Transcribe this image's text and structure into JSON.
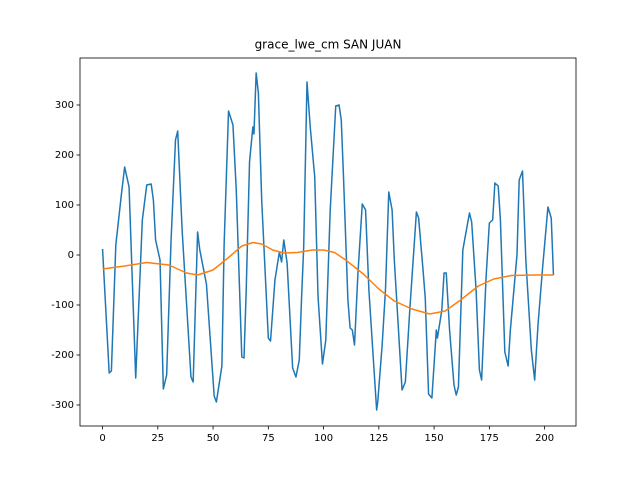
{
  "chart_data": {
    "type": "line",
    "title": "grace_lwe_cm SAN JUAN",
    "xlim": [
      -10.2,
      214.2
    ],
    "ylim": [
      -342,
      394
    ],
    "xticks": [
      0,
      25,
      50,
      75,
      100,
      125,
      150,
      175,
      200
    ],
    "yticks": [
      -300,
      -200,
      -100,
      0,
      100,
      200,
      300
    ],
    "series": [
      {
        "color": "#1f77b4",
        "x": [
          0,
          3,
          4,
          6,
          8.6,
          10,
          12,
          15,
          18,
          20,
          22,
          23,
          24,
          26,
          27.5,
          29,
          31,
          33,
          34,
          36,
          40,
          41,
          43,
          44,
          47,
          50.5,
          51.5,
          54,
          55,
          57,
          59,
          60.5,
          63,
          64,
          65,
          66.5,
          68,
          68.5,
          69.5,
          70.5,
          72,
          75,
          76,
          78,
          80,
          81,
          82,
          83.5,
          86,
          87.5,
          89,
          90,
          91,
          92.5,
          94,
          96,
          97.5,
          99.5,
          101,
          103,
          105.5,
          107,
          108,
          109,
          111,
          112,
          113,
          114,
          115.5,
          117.5,
          119,
          120.5,
          124,
          124.5,
          126.5,
          128,
          129.5,
          131,
          132,
          135.5,
          137,
          139,
          142,
          143,
          145,
          146,
          147.5,
          149,
          151,
          151.5,
          153.5,
          154.5,
          155.5,
          157,
          159,
          160,
          161,
          163,
          166,
          167,
          169,
          170.5,
          171.5,
          173.5,
          175,
          176.5,
          177.5,
          179,
          180,
          182,
          183.5,
          184.5,
          187.5,
          188.5,
          190,
          191.5,
          194,
          195.5,
          197,
          199,
          201.5,
          203,
          204
        ],
        "values": [
          12,
          -236,
          -232,
          20,
          124,
          176,
          136,
          -246,
          70,
          140,
          142,
          110,
          30,
          -10,
          -268,
          -240,
          30,
          230,
          248,
          50,
          -244,
          -254,
          46,
          10,
          -58,
          -282,
          -294,
          -222,
          20,
          288,
          260,
          130,
          -204,
          -206,
          -70,
          186,
          256,
          242,
          364,
          324,
          110,
          -166,
          -172,
          -50,
          6,
          -14,
          30,
          -16,
          -226,
          -244,
          -210,
          -90,
          16,
          346,
          254,
          156,
          -84,
          -218,
          -170,
          90,
          298,
          300,
          270,
          158,
          -90,
          -146,
          -150,
          -180,
          -40,
          102,
          90,
          -70,
          -310,
          -294,
          -180,
          -70,
          126,
          90,
          -10,
          -270,
          -254,
          -110,
          86,
          74,
          -30,
          -86,
          -278,
          -286,
          -150,
          -166,
          -110,
          -36,
          -36,
          -150,
          -260,
          -280,
          -264,
          10,
          84,
          66,
          -70,
          -230,
          -250,
          -46,
          64,
          70,
          144,
          138,
          70,
          -194,
          -222,
          -150,
          0,
          150,
          168,
          -10,
          -190,
          -250,
          -140,
          -30,
          96,
          74,
          -40
        ]
      },
      {
        "color": "#ff7f0e",
        "x": [
          0,
          10,
          20,
          30,
          38,
          43,
          50,
          57,
          63,
          68,
          72,
          77,
          82,
          88,
          95,
          100,
          105,
          110,
          118,
          125,
          132,
          140,
          148,
          155,
          162,
          170,
          177,
          185,
          195,
          204
        ],
        "values": [
          -28,
          -22,
          -15,
          -20,
          -36,
          -40,
          -30,
          -5,
          18,
          25,
          22,
          10,
          4,
          5,
          10,
          10,
          5,
          -10,
          -38,
          -68,
          -92,
          -108,
          -118,
          -112,
          -90,
          -62,
          -48,
          -41,
          -40,
          -40
        ]
      }
    ]
  }
}
